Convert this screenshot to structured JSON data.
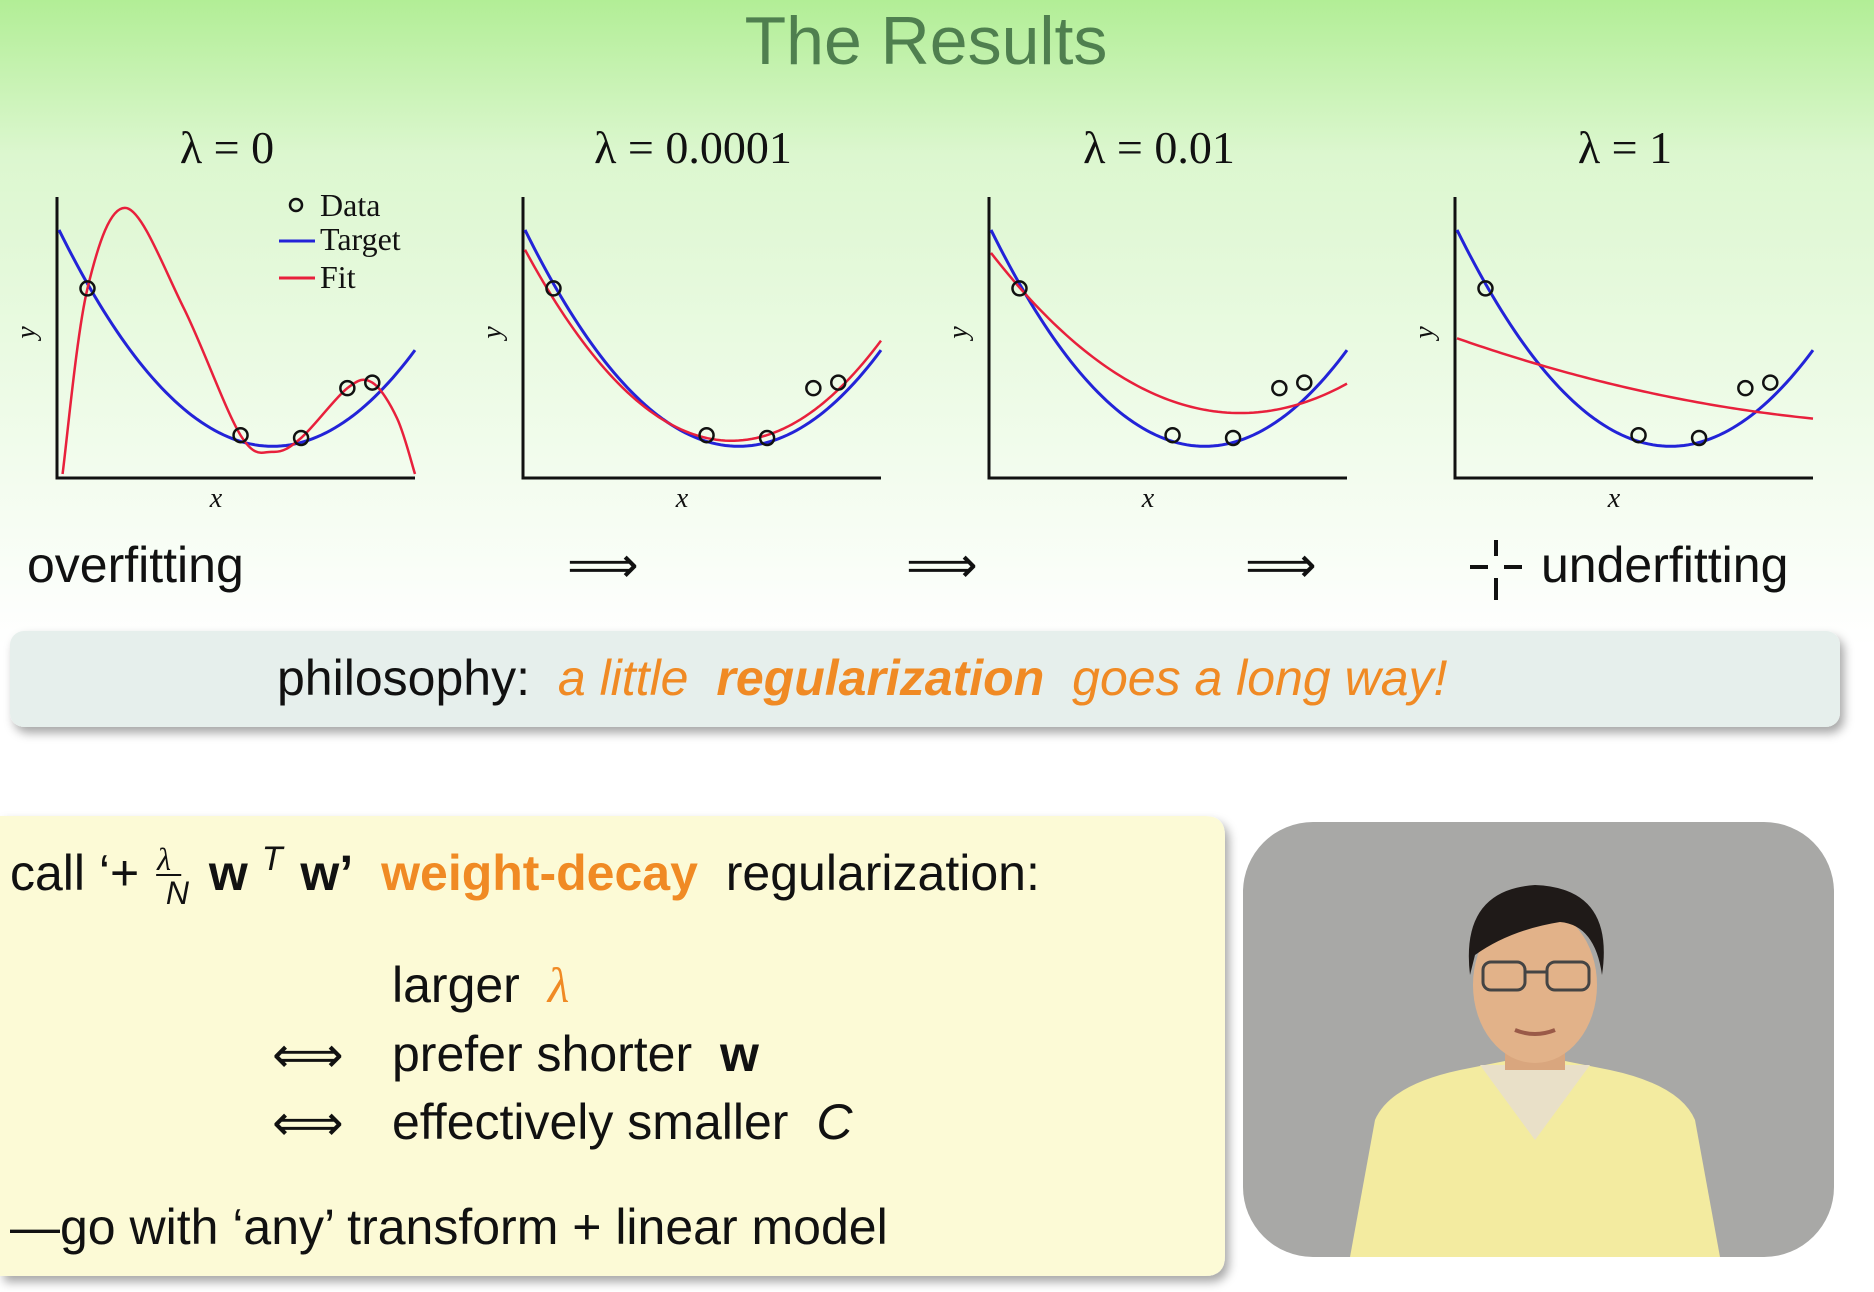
{
  "title": "The Results",
  "panels": [
    {
      "label": "λ = 0",
      "x_label": "x",
      "y_label": "y"
    },
    {
      "label": "λ = 0.0001",
      "x_label": "x",
      "y_label": "y"
    },
    {
      "label": "λ = 0.01",
      "x_label": "x",
      "y_label": "y"
    },
    {
      "label": "λ = 1",
      "x_label": "x",
      "y_label": "y"
    }
  ],
  "legend": [
    "Data",
    "Target",
    "Fit"
  ],
  "progression": {
    "start": "overfitting",
    "arrows": [
      "⟹",
      "⟹",
      "⟹"
    ],
    "end": "underfitting"
  },
  "philosophy": {
    "lead": "philosophy:",
    "text": [
      "a little",
      "regularization",
      "goes a long way!"
    ]
  },
  "weight_decay": {
    "intro": [
      "call ‘+",
      "λ",
      "N",
      "w",
      "T",
      "w’",
      "weight-decay",
      "regularization:"
    ],
    "lines": [
      {
        "text": "larger",
        "symbol": "λ"
      },
      {
        "arrow": "⟺",
        "text": "prefer shorter",
        "symbol": "w"
      },
      {
        "arrow": "⟺",
        "text": "effectively smaller",
        "symbol": "C"
      }
    ],
    "closing": "—go with ‘any’ transform + linear model"
  }
}
